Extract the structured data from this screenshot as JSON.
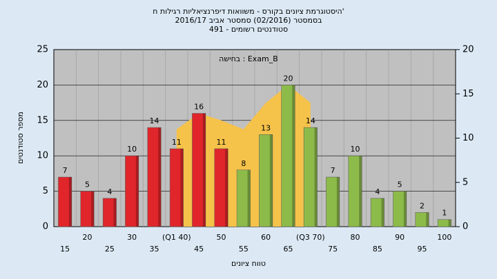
{
  "chart_data": {
    "type": "bar",
    "title": [
      "היסטוגרמת ציונים בקורס - משוואות דיפרנציאליות רגילות ח'",
      "בסמסטר (02/2016) סמסטר אביב 2016/17",
      "491 - סטודנטים רשומים"
    ],
    "annotation": "בחישה : Exam_B",
    "x_label": "טווח ציונים",
    "y_label": "מספר סטודנטים",
    "categories": [
      "15",
      "20",
      "25",
      "30",
      "35",
      "(Q1 40)",
      "45",
      "50",
      "55",
      "60",
      "65",
      "(Q3 70)",
      "75",
      "80",
      "85",
      "90",
      "95",
      "100"
    ],
    "values": [
      7,
      5,
      4,
      10,
      14,
      11,
      16,
      11,
      8,
      13,
      20,
      14,
      7,
      10,
      4,
      5,
      2,
      1
    ],
    "colors": [
      "#e0262b",
      "#e0262b",
      "#e0262b",
      "#e0262b",
      "#e0262b",
      "#e0262b",
      "#e0262b",
      "#e0262b",
      "#8dbb4a",
      "#8dbb4a",
      "#8dbb4a",
      "#8dbb4a",
      "#8dbb4a",
      "#8dbb4a",
      "#8dbb4a",
      "#8dbb4a",
      "#8dbb4a",
      "#8dbb4a"
    ],
    "area": {
      "color": "#f5c24a",
      "axis": "y2",
      "values": [
        null,
        null,
        null,
        null,
        null,
        11,
        12.8,
        12,
        11,
        14,
        16,
        14,
        null,
        null,
        null,
        null,
        null,
        null
      ]
    },
    "ylim": [
      0,
      25
    ],
    "yticks": [
      0,
      5,
      10,
      15,
      20,
      25
    ],
    "y2lim": [
      0,
      20
    ],
    "y2ticks": [
      0,
      5,
      10,
      15,
      20
    ],
    "grid": true
  }
}
